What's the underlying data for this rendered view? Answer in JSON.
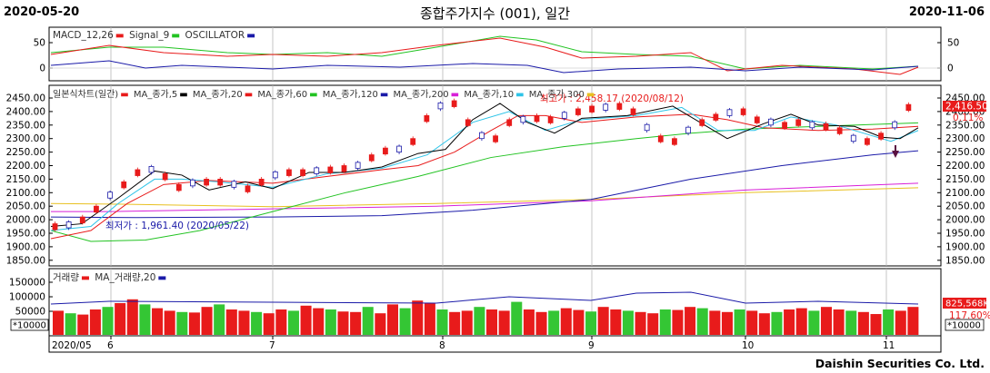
{
  "header": {
    "start_date": "2020-05-20",
    "end_date": "2020-11-06",
    "title": "종합주가지수 (001), 일간"
  },
  "macd_legend": [
    {
      "label": "MACD_12,26",
      "color": "#e81b1b"
    },
    {
      "label": "Signal_9",
      "color": "#22c322"
    },
    {
      "label": "OSCILLATOR",
      "color": "#1a1aa8"
    }
  ],
  "macd_ticks": [
    "50",
    "0"
  ],
  "price_legend": [
    {
      "label": "일본식차트(일간)",
      "color": "#e81b1b"
    },
    {
      "label": "MA_종가,5",
      "color": "#000000"
    },
    {
      "label": "MA_종가,20",
      "color": "#e81b1b"
    },
    {
      "label": "MA_종가,60",
      "color": "#22c322"
    },
    {
      "label": "MA_종가,120",
      "color": "#1a1aa8"
    },
    {
      "label": "MA_종가,200",
      "color": "#d81fd8"
    },
    {
      "label": "MA_종가,10",
      "color": "#2ec4e8"
    },
    {
      "label": "MA_종가,300",
      "color": "#e8c020"
    }
  ],
  "price_ticks": [
    "2450.00",
    "2400.00",
    "2350.00",
    "2300.00",
    "2250.00",
    "2200.00",
    "2150.00",
    "2100.00",
    "2050.00",
    "2000.00",
    "1950.00",
    "1900.00",
    "1850.00"
  ],
  "annotations": {
    "high": "최고가 : 2,458.17 (2020/08/12)",
    "low": "최저가 : 1,961.40 (2020/05/22)",
    "last_price": "2,416.50",
    "change_pct": "0.11%"
  },
  "volume_legend": [
    {
      "label": "거래량",
      "color": "#e81b1b"
    },
    {
      "label": "MA_거래량,20",
      "color": "#1a1aa8"
    }
  ],
  "volume_ticks": [
    "150000",
    "100000",
    "50000"
  ],
  "volume_unit": "*10000",
  "volume_badges": {
    "last_volume": "825,568K",
    "ratio_pct": "117.60%"
  },
  "x_axis_labels": [
    "2020/05",
    "6",
    "7",
    "8",
    "9",
    "10",
    "11"
  ],
  "footer": {
    "company": "Daishin Securities Co. Ltd."
  },
  "colors": {
    "up": "#e81b1b",
    "down": "#1a1aa8",
    "vol_down": "#34c634",
    "grid": "#b8b8b8"
  }
}
